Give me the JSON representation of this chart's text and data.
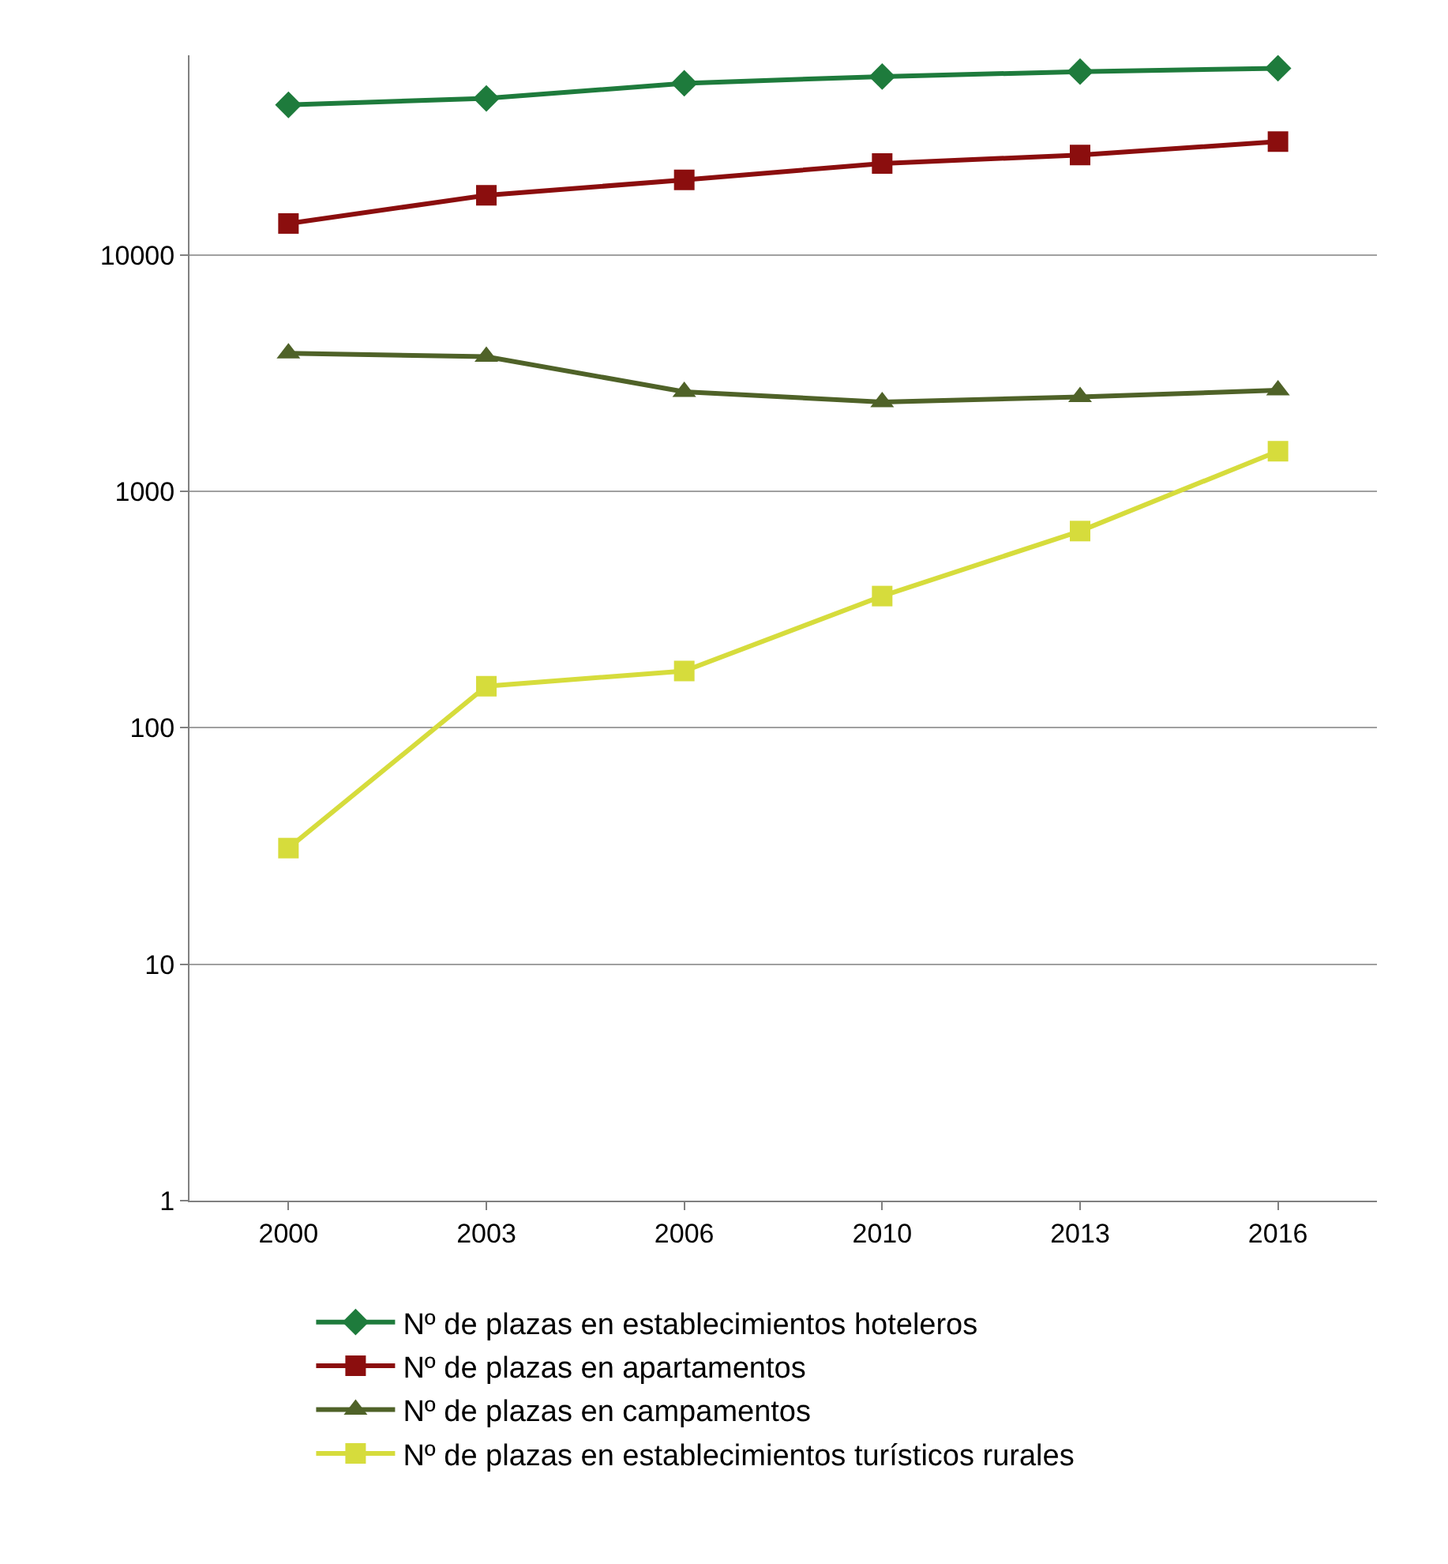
{
  "chart_data": {
    "type": "line",
    "log": "y",
    "categories": [
      "2000",
      "2003",
      "2006",
      "2010",
      "2013",
      "2016"
    ],
    "ylim": [
      1,
      70000
    ],
    "yticks": [
      1,
      10,
      100,
      1000,
      10000
    ],
    "grid": "y",
    "legend": "bottom",
    "series": [
      {
        "name": "Nº de plazas en establecimientos hoteleros",
        "color": "#1e7b3c",
        "marker": "diamond",
        "values": [
          43200,
          46000,
          53300,
          56900,
          59700,
          61700
        ]
      },
      {
        "name": "Nº de plazas en apartamentos",
        "color": "#8b0e0e",
        "marker": "square",
        "values": [
          13600,
          17900,
          20800,
          24400,
          26500,
          30200
        ]
      },
      {
        "name": "Nº de plazas en campamentos",
        "color": "#4f6228",
        "marker": "triangle",
        "values": [
          3840,
          3720,
          2640,
          2390,
          2510,
          2680
        ]
      },
      {
        "name": "Nº de plazas en establecimientos turísticos rurales",
        "color": "#d6dc3c",
        "marker": "square",
        "values": [
          31,
          150,
          174,
          361,
          680,
          1480
        ]
      }
    ]
  }
}
